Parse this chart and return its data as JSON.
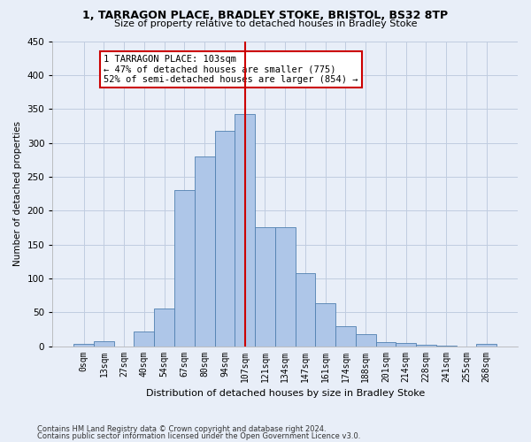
{
  "title1": "1, TARRAGON PLACE, BRADLEY STOKE, BRISTOL, BS32 8TP",
  "title2": "Size of property relative to detached houses in Bradley Stoke",
  "xlabel": "Distribution of detached houses by size in Bradley Stoke",
  "ylabel": "Number of detached properties",
  "bar_labels": [
    "0sqm",
    "13sqm",
    "27sqm",
    "40sqm",
    "54sqm",
    "67sqm",
    "80sqm",
    "94sqm",
    "107sqm",
    "121sqm",
    "134sqm",
    "147sqm",
    "161sqm",
    "174sqm",
    "188sqm",
    "201sqm",
    "214sqm",
    "228sqm",
    "241sqm",
    "255sqm",
    "268sqm"
  ],
  "bar_heights": [
    3,
    7,
    0,
    22,
    55,
    230,
    280,
    317,
    343,
    175,
    175,
    108,
    63,
    30,
    18,
    6,
    4,
    2,
    1,
    0,
    3
  ],
  "bar_color": "#aec6e8",
  "bar_edge_color": "#5080b0",
  "bar_width": 1.0,
  "vline_x": 8,
  "vline_color": "#cc0000",
  "annotation_text": "1 TARRAGON PLACE: 103sqm\n← 47% of detached houses are smaller (775)\n52% of semi-detached houses are larger (854) →",
  "annotation_box_color": "#ffffff",
  "annotation_box_edge": "#cc0000",
  "ylim": [
    0,
    450
  ],
  "yticks": [
    0,
    50,
    100,
    150,
    200,
    250,
    300,
    350,
    400,
    450
  ],
  "footnote1": "Contains HM Land Registry data © Crown copyright and database right 2024.",
  "footnote2": "Contains public sector information licensed under the Open Government Licence v3.0.",
  "background_color": "#e8eef8",
  "grid_color": "#c0cce0"
}
